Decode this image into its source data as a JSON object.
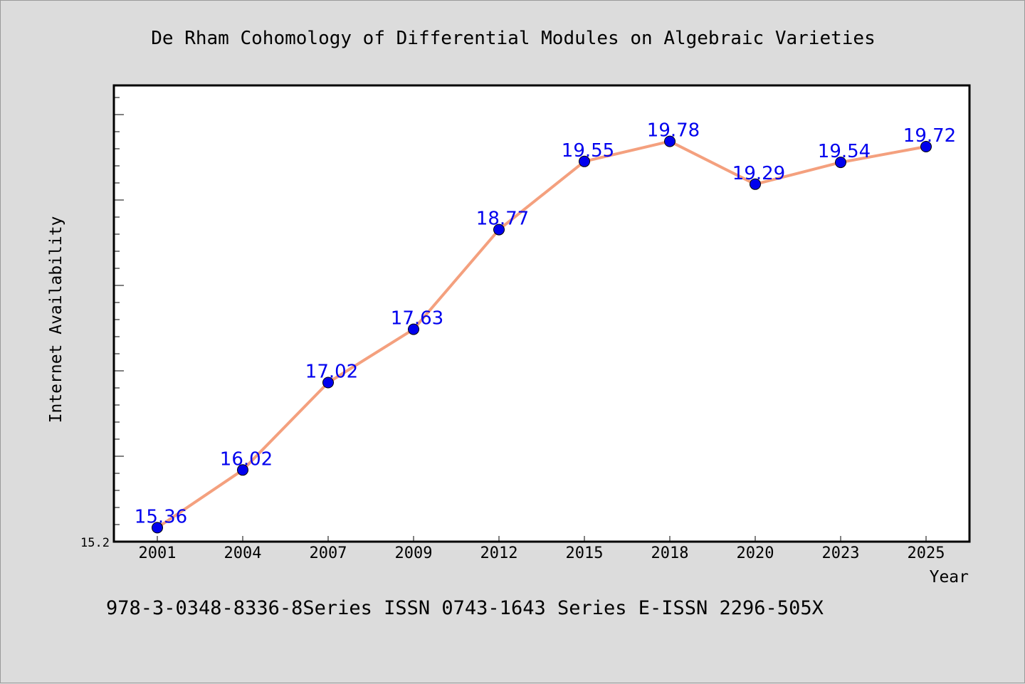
{
  "footer": {
    "text": "978-3-0348-8336-8Series ISSN 0743-1643 Series E-ISSN 2296-505X"
  },
  "colors": {
    "line": "#f4a07e",
    "marker": "#0000ee",
    "label": "#0000ee",
    "background": "#dcdcdc",
    "plot_bg": "#ffffff"
  },
  "chart_data": {
    "type": "line",
    "title": "De Rham Cohomology of Differential Modules on Algebraic Varieties",
    "xlabel": "Year",
    "ylabel": "Internet Availability",
    "categories": [
      "2001",
      "2004",
      "2007",
      "2009",
      "2012",
      "2015",
      "2018",
      "2020",
      "2023",
      "2025"
    ],
    "series": [
      {
        "values": [
          15.36,
          16.02,
          17.02,
          17.63,
          18.77,
          19.55,
          19.78,
          19.29,
          19.54,
          19.72
        ]
      }
    ],
    "data_labels": [
      "15.36",
      "16.02",
      "17.02",
      "17.63",
      "18.77",
      "19.55",
      "19.78",
      "19.29",
      "19.54",
      "19.72"
    ],
    "y_tick_labels": [
      "15.2"
    ],
    "ylim": [
      15.2,
      20.42
    ],
    "grid": false,
    "legend": "none"
  }
}
